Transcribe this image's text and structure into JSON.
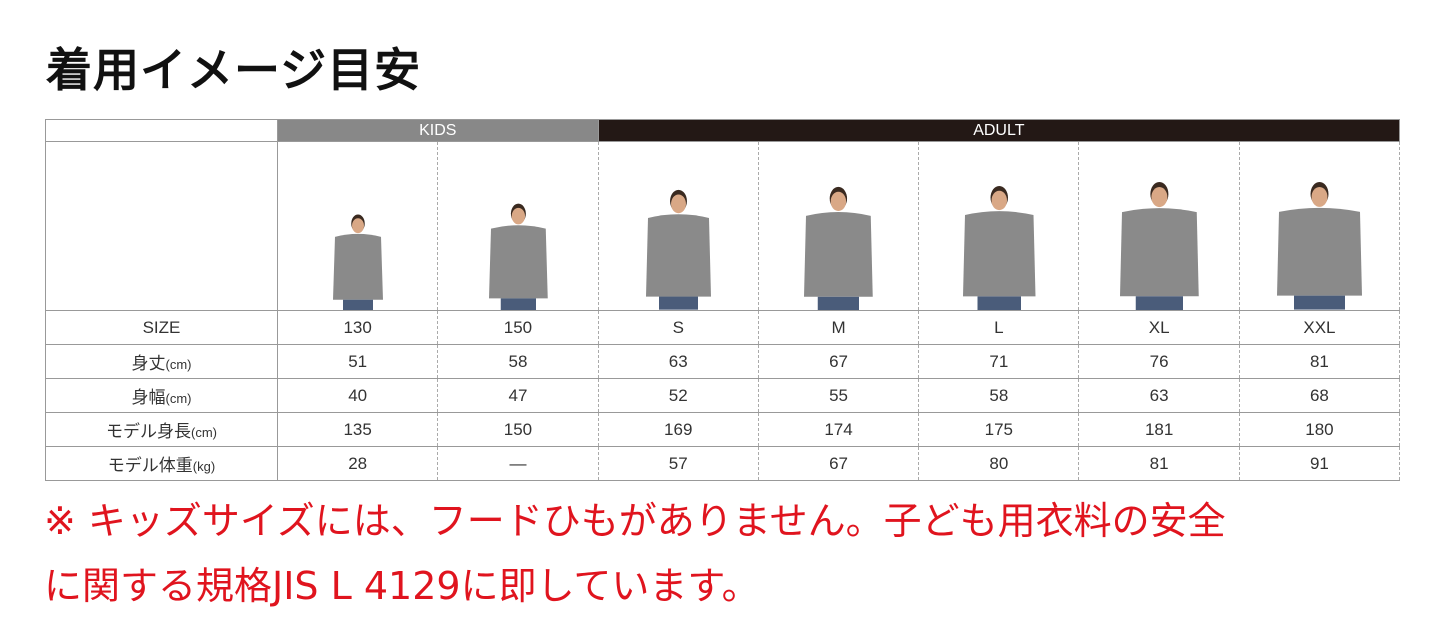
{
  "title": "着用イメージ目安",
  "groups": {
    "kids": "KIDS",
    "adult": "ADULT"
  },
  "rows": [
    {
      "label": "SIZE",
      "unit": "",
      "values": [
        "130",
        "150",
        "S",
        "M",
        "L",
        "XL",
        "XXL"
      ]
    },
    {
      "label": "身丈",
      "unit": "(cm)",
      "values": [
        "51",
        "58",
        "63",
        "67",
        "71",
        "76",
        "81"
      ]
    },
    {
      "label": "身幅",
      "unit": "(cm)",
      "values": [
        "40",
        "47",
        "52",
        "55",
        "58",
        "63",
        "68"
      ]
    },
    {
      "label": "モデル身長",
      "unit": "(cm)",
      "values": [
        "135",
        "150",
        "169",
        "174",
        "175",
        "181",
        "180"
      ]
    },
    {
      "label": "モデル体重",
      "unit": "(kg)",
      "values": [
        "28",
        "—",
        "57",
        "67",
        "80",
        "81",
        "91"
      ]
    }
  ],
  "hoodie_color": "#8a8a8a",
  "note_color": "#e0141e",
  "note": {
    "line1": "※ キッズサイズには、フードひもがありません。子ども用衣料の安全",
    "line2": "に関する規格JIS L 4129に即しています。"
  }
}
